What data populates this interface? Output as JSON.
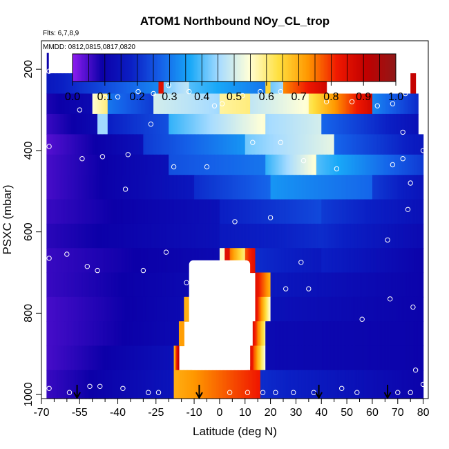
{
  "chart_data": {
    "type": "heatmap",
    "title": "ATOM1 Northbound NOy_CL_trop",
    "subtitle_flights": "Flts: 6,7,8,9",
    "subtitle_dates": "MMDD: 0812,0815,0817,0820",
    "xlabel": "Latitude (deg N)",
    "ylabel": "PSXC (mbar)",
    "xlim": [
      -70,
      82
    ],
    "ylim": [
      1010,
      130
    ],
    "y_reversed": true,
    "x_ticks": [
      -70,
      -55,
      -40,
      -25,
      -10,
      0,
      10,
      20,
      30,
      40,
      50,
      60,
      70,
      80
    ],
    "x_tick_labels": [
      "-70",
      "-55",
      "-40",
      "-25",
      "-10",
      "0",
      "10",
      "20",
      "30",
      "40",
      "50",
      "60",
      "70",
      "80"
    ],
    "x_minor_ticks": [
      -65,
      -60,
      -50,
      -45,
      -35,
      -30,
      -20,
      -15,
      -5,
      5,
      15,
      25,
      35,
      45,
      55,
      65,
      75
    ],
    "y_ticks": [
      200,
      400,
      600,
      800,
      1000
    ],
    "y_tick_labels": [
      "200",
      "400",
      "600",
      "800",
      "1000"
    ],
    "colorbar": {
      "range": [
        0,
        1
      ],
      "ticks": [
        0.0,
        0.1,
        0.2,
        0.3,
        0.4,
        0.5,
        0.6,
        0.7,
        0.8,
        0.9,
        1.0
      ],
      "tick_labels": [
        "0.0",
        "0.1",
        "0.2",
        "0.3",
        "0.4",
        "0.5",
        "0.6",
        "0.7",
        "0.8",
        "0.9",
        "1.0"
      ],
      "colors": [
        "#8e1cf0",
        "#0c00a8",
        "#0b1fc4",
        "#1560e8",
        "#18a8f8",
        "#a8dcff",
        "#ffffd8",
        "#ffe040",
        "#ff9800",
        "#f01800",
        "#c00000",
        "#901818"
      ]
    },
    "level_bands": [
      {
        "p_top": 210,
        "p_bot": 260,
        "segments": [
          {
            "x0": -68,
            "x1": -24,
            "v0": 0.16,
            "v1": 0.32
          },
          {
            "x0": -24,
            "x1": -22,
            "v0": 0.85,
            "v1": 0.85
          },
          {
            "x0": -22,
            "x1": -12,
            "v0": 0.42,
            "v1": 0.48
          },
          {
            "x0": -12,
            "x1": 18,
            "v0": 0.4,
            "v1": 0.3
          },
          {
            "x0": 18,
            "x1": 20,
            "v0": 0.65,
            "v1": 0.65
          },
          {
            "x0": 20,
            "x1": 25,
            "v0": 0.42,
            "v1": 0.45
          },
          {
            "x0": 25,
            "x1": 42,
            "v0": 0.74,
            "v1": 0.88
          },
          {
            "x0": 75,
            "x1": 77,
            "v0": 0.9,
            "v1": 0.9
          }
        ]
      },
      {
        "p_top": 260,
        "p_bot": 310,
        "segments": [
          {
            "x0": -68,
            "x1": -50,
            "v0": 0.08,
            "v1": 0.12
          },
          {
            "x0": -50,
            "x1": -44,
            "v0": 0.55,
            "v1": 0.6
          },
          {
            "x0": -44,
            "x1": -26,
            "v0": 0.3,
            "v1": 0.22
          },
          {
            "x0": -26,
            "x1": 0,
            "v0": 0.5,
            "v1": 0.45
          },
          {
            "x0": 0,
            "x1": 12,
            "v0": 0.58,
            "v1": 0.6
          },
          {
            "x0": 12,
            "x1": 35,
            "v0": 0.48,
            "v1": 0.55
          },
          {
            "x0": 35,
            "x1": 60,
            "v0": 0.62,
            "v1": 0.88
          },
          {
            "x0": 60,
            "x1": 78,
            "v0": 0.32,
            "v1": 0.2
          }
        ]
      },
      {
        "p_top": 310,
        "p_bot": 360,
        "segments": [
          {
            "x0": -68,
            "x1": -48,
            "v0": 0.06,
            "v1": 0.12
          },
          {
            "x0": -48,
            "x1": -44,
            "v0": 0.45,
            "v1": 0.45
          },
          {
            "x0": -44,
            "x1": -20,
            "v0": 0.18,
            "v1": 0.25
          },
          {
            "x0": -20,
            "x1": 18,
            "v0": 0.38,
            "v1": 0.55
          },
          {
            "x0": 18,
            "x1": 40,
            "v0": 0.45,
            "v1": 0.5
          },
          {
            "x0": 40,
            "x1": 78,
            "v0": 0.28,
            "v1": 0.14
          }
        ]
      },
      {
        "p_top": 360,
        "p_bot": 410,
        "segments": [
          {
            "x0": -68,
            "x1": -30,
            "v0": 0.04,
            "v1": 0.14
          },
          {
            "x0": -30,
            "x1": 10,
            "v0": 0.22,
            "v1": 0.34
          },
          {
            "x0": 10,
            "x1": 45,
            "v0": 0.42,
            "v1": 0.52
          },
          {
            "x0": 45,
            "x1": 80,
            "v0": 0.28,
            "v1": 0.16
          }
        ]
      },
      {
        "p_top": 410,
        "p_bot": 460,
        "segments": [
          {
            "x0": -68,
            "x1": -20,
            "v0": 0.05,
            "v1": 0.14
          },
          {
            "x0": -20,
            "x1": 18,
            "v0": 0.25,
            "v1": 0.3
          },
          {
            "x0": 18,
            "x1": 38,
            "v0": 0.38,
            "v1": 0.55
          },
          {
            "x0": 38,
            "x1": 80,
            "v0": 0.4,
            "v1": 0.22
          }
        ]
      },
      {
        "p_top": 460,
        "p_bot": 520,
        "segments": [
          {
            "x0": -68,
            "x1": -10,
            "v0": 0.05,
            "v1": 0.16
          },
          {
            "x0": -10,
            "x1": 20,
            "v0": 0.2,
            "v1": 0.28
          },
          {
            "x0": 20,
            "x1": 60,
            "v0": 0.34,
            "v1": 0.28
          },
          {
            "x0": 60,
            "x1": 80,
            "v0": 0.22,
            "v1": 0.15
          }
        ]
      },
      {
        "p_top": 520,
        "p_bot": 580,
        "segments": [
          {
            "x0": -68,
            "x1": 0,
            "v0": 0.06,
            "v1": 0.14
          },
          {
            "x0": 0,
            "x1": 40,
            "v0": 0.18,
            "v1": 0.24
          },
          {
            "x0": 40,
            "x1": 80,
            "v0": 0.22,
            "v1": 0.14
          }
        ]
      },
      {
        "p_top": 580,
        "p_bot": 640,
        "segments": [
          {
            "x0": -68,
            "x1": 0,
            "v0": 0.07,
            "v1": 0.14
          },
          {
            "x0": 0,
            "x1": 40,
            "v0": 0.16,
            "v1": 0.2
          },
          {
            "x0": 40,
            "x1": 80,
            "v0": 0.2,
            "v1": 0.12
          }
        ]
      },
      {
        "p_top": 640,
        "p_bot": 700,
        "segments": [
          {
            "x0": -68,
            "x1": 0,
            "v0": 0.06,
            "v1": 0.12
          },
          {
            "x0": 0,
            "x1": 2,
            "v0": 0.55,
            "v1": 0.55
          },
          {
            "x0": 2,
            "x1": 4,
            "v0": 0.85,
            "v1": 0.85
          },
          {
            "x0": 4,
            "x1": 10,
            "v0": 0.75,
            "v1": 0.6
          },
          {
            "x0": 10,
            "x1": 14,
            "v0": 0.78,
            "v1": 0.85
          },
          {
            "x0": 14,
            "x1": 40,
            "v0": 0.2,
            "v1": 0.16
          },
          {
            "x0": 40,
            "x1": 80,
            "v0": 0.18,
            "v1": 0.1
          }
        ]
      },
      {
        "p_top": 700,
        "p_bot": 760,
        "segments": [
          {
            "x0": -68,
            "x1": -10,
            "v0": 0.06,
            "v1": 0.12
          },
          {
            "x0": 14,
            "x1": 20,
            "v0": 0.85,
            "v1": 0.7
          },
          {
            "x0": 20,
            "x1": 80,
            "v0": 0.16,
            "v1": 0.1
          }
        ]
      },
      {
        "p_top": 760,
        "p_bot": 820,
        "segments": [
          {
            "x0": -68,
            "x1": -14,
            "v0": 0.05,
            "v1": 0.12
          },
          {
            "x0": -14,
            "x1": -12,
            "v0": 0.7,
            "v1": 0.7
          },
          {
            "x0": 14,
            "x1": 20,
            "v0": 0.85,
            "v1": 0.55
          },
          {
            "x0": 20,
            "x1": 80,
            "v0": 0.14,
            "v1": 0.1
          }
        ]
      },
      {
        "p_top": 820,
        "p_bot": 880,
        "segments": [
          {
            "x0": -68,
            "x1": -16,
            "v0": 0.05,
            "v1": 0.12
          },
          {
            "x0": -16,
            "x1": -14,
            "v0": 0.72,
            "v1": 0.72
          },
          {
            "x0": 13,
            "x1": 18,
            "v0": 0.85,
            "v1": 0.6
          },
          {
            "x0": 18,
            "x1": 80,
            "v0": 0.12,
            "v1": 0.1
          }
        ]
      },
      {
        "p_top": 880,
        "p_bot": 940,
        "segments": [
          {
            "x0": -68,
            "x1": -18,
            "v0": 0.05,
            "v1": 0.14
          },
          {
            "x0": -18,
            "x1": -16,
            "v0": 0.7,
            "v1": 0.9
          },
          {
            "x0": 12,
            "x1": 18,
            "v0": 0.85,
            "v1": 0.55
          },
          {
            "x0": 18,
            "x1": 80,
            "v0": 0.12,
            "v1": 0.1
          }
        ]
      },
      {
        "p_top": 940,
        "p_bot": 1010,
        "segments": [
          {
            "x0": -68,
            "x1": -18,
            "v0": 0.06,
            "v1": 0.15
          },
          {
            "x0": -18,
            "x1": 16,
            "v0": 0.7,
            "v1": 0.82
          },
          {
            "x0": 16,
            "x1": 80,
            "v0": 0.2,
            "v1": 0.1
          }
        ]
      }
    ],
    "hole": {
      "x0": -12,
      "x1": 12,
      "p_top": 670,
      "p_bot": 940
    },
    "strips": [
      {
        "x": -67.5,
        "p_top": 160,
        "p_bot": 210,
        "value": 0.1
      }
    ],
    "sample_points": [
      [
        -67,
        205
      ],
      [
        -67,
        390
      ],
      [
        -67,
        665
      ],
      [
        -67,
        985
      ],
      [
        -60,
        655
      ],
      [
        -59,
        995
      ],
      [
        -55,
        300
      ],
      [
        -54,
        420
      ],
      [
        -52,
        685
      ],
      [
        -51,
        980
      ],
      [
        -48,
        695
      ],
      [
        -47,
        980
      ],
      [
        -46,
        415
      ],
      [
        -45,
        270
      ],
      [
        -40,
        268
      ],
      [
        -38,
        985
      ],
      [
        -37,
        495
      ],
      [
        -36,
        410
      ],
      [
        -32,
        255
      ],
      [
        -30,
        695
      ],
      [
        -28,
        995
      ],
      [
        -27,
        335
      ],
      [
        -26,
        260
      ],
      [
        -24,
        995
      ],
      [
        -21,
        650
      ],
      [
        -20,
        240
      ],
      [
        -18,
        440
      ],
      [
        -13,
        725
      ],
      [
        -12,
        255
      ],
      [
        -5,
        440
      ],
      [
        -2,
        290
      ],
      [
        1,
        285
      ],
      [
        4,
        995
      ],
      [
        6,
        575
      ],
      [
        9,
        265
      ],
      [
        11,
        995
      ],
      [
        13,
        380
      ],
      [
        16,
        255
      ],
      [
        17,
        995
      ],
      [
        20,
        565
      ],
      [
        22,
        995
      ],
      [
        24,
        255
      ],
      [
        24,
        380
      ],
      [
        26,
        740
      ],
      [
        29,
        995
      ],
      [
        31,
        225
      ],
      [
        32,
        675
      ],
      [
        33,
        425
      ],
      [
        35,
        740
      ],
      [
        37,
        995
      ],
      [
        42,
        280
      ],
      [
        46,
        445
      ],
      [
        48,
        985
      ],
      [
        52,
        280
      ],
      [
        54,
        995
      ],
      [
        56,
        815
      ],
      [
        62,
        290
      ],
      [
        66,
        620
      ],
      [
        67,
        765
      ],
      [
        68,
        435
      ],
      [
        68,
        285
      ],
      [
        70,
        995
      ],
      [
        72,
        355
      ],
      [
        72,
        420
      ],
      [
        73,
        260
      ],
      [
        74,
        545
      ],
      [
        75,
        995
      ],
      [
        75,
        480
      ],
      [
        76,
        785
      ],
      [
        77,
        940
      ],
      [
        80,
        400
      ],
      [
        80,
        975
      ]
    ],
    "flight_markers_x": [
      -56,
      -8,
      39,
      66
    ]
  }
}
